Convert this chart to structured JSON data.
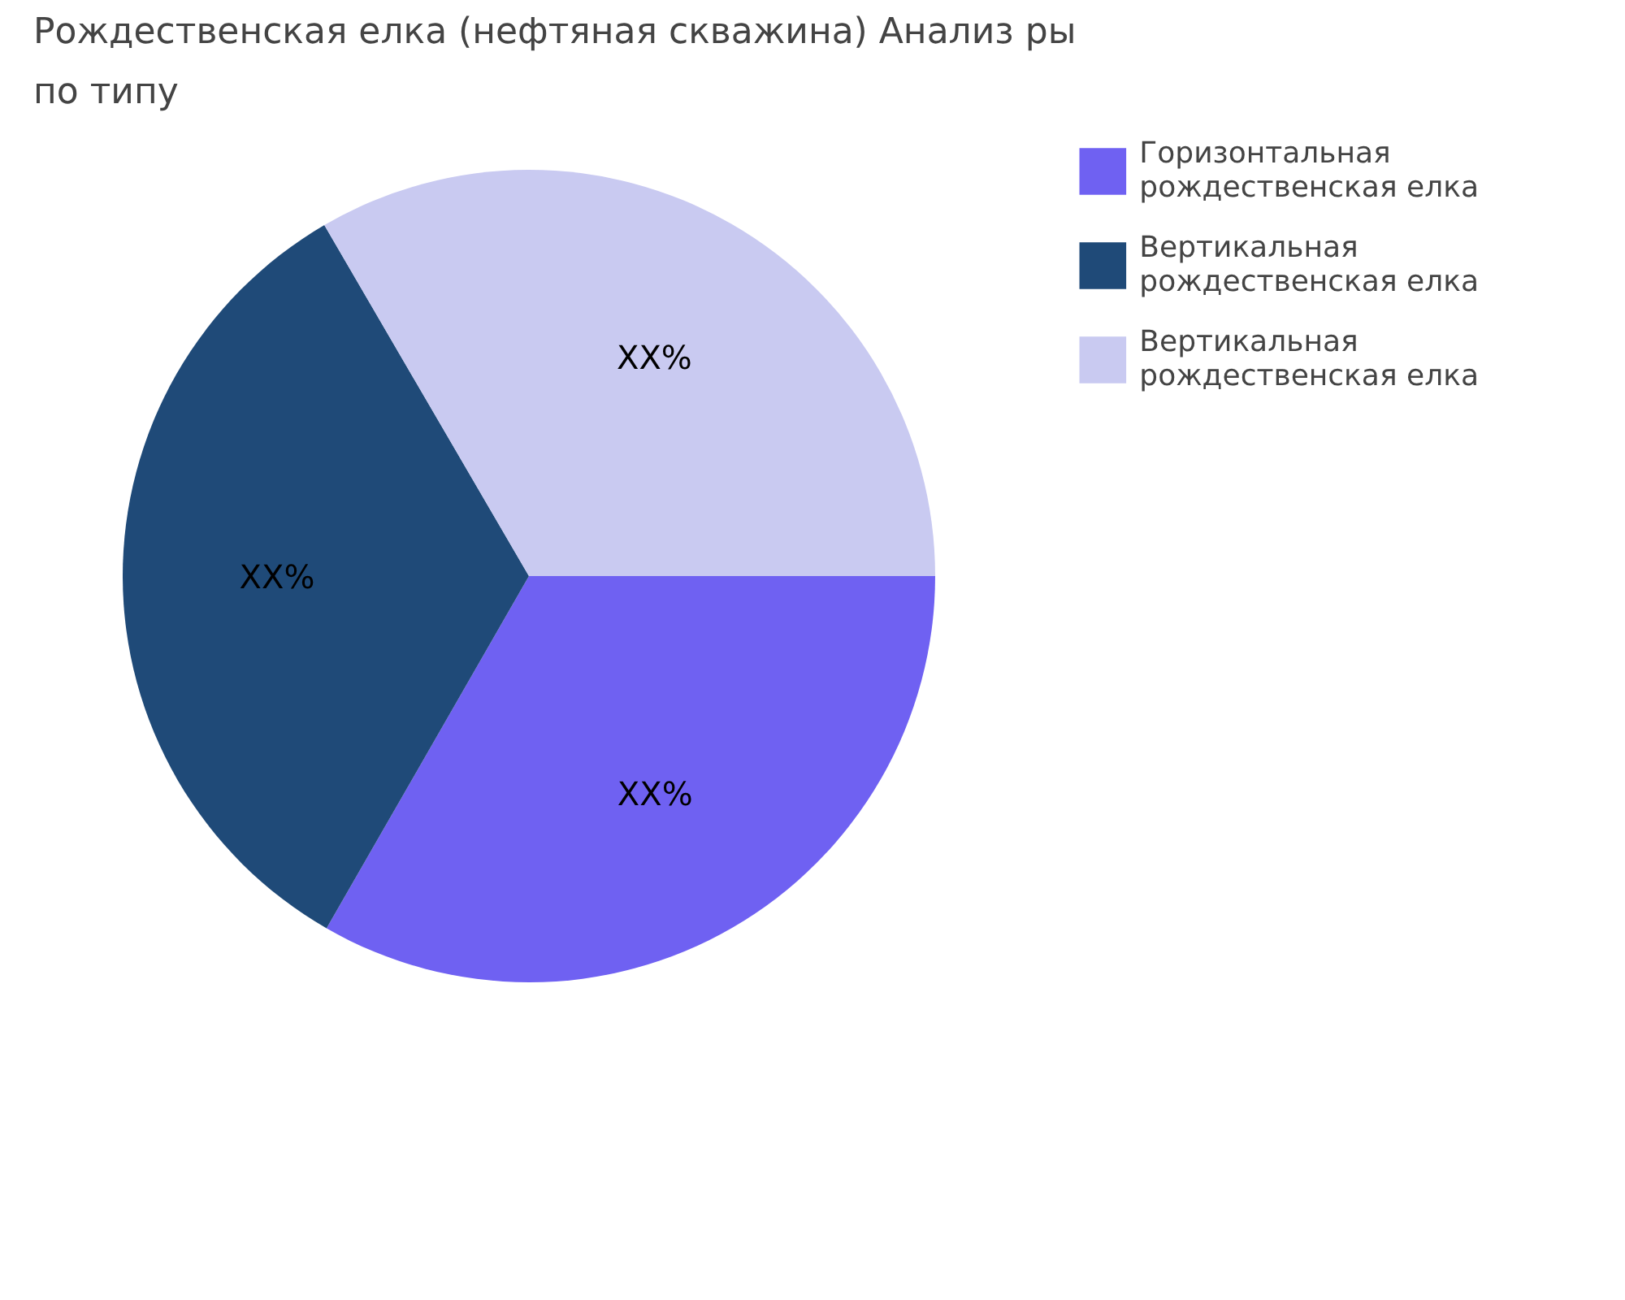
{
  "chart_data": {
    "type": "pie",
    "title": "Рождественская елка (нефтяная скважина) Анализ ры",
    "subtitle": "по типу",
    "categories": [
      "Горизонтальная рождественская елка",
      "Вертикальная рождественская елка",
      "Вертикальная рождественская елка"
    ],
    "values": [
      33.3,
      33.3,
      33.4
    ],
    "colors": [
      "#6f61f2",
      "#1f4a78",
      "#c9caf1"
    ],
    "value_labels": [
      "XX%",
      "XX%",
      "XX%"
    ],
    "legend": "top right"
  }
}
